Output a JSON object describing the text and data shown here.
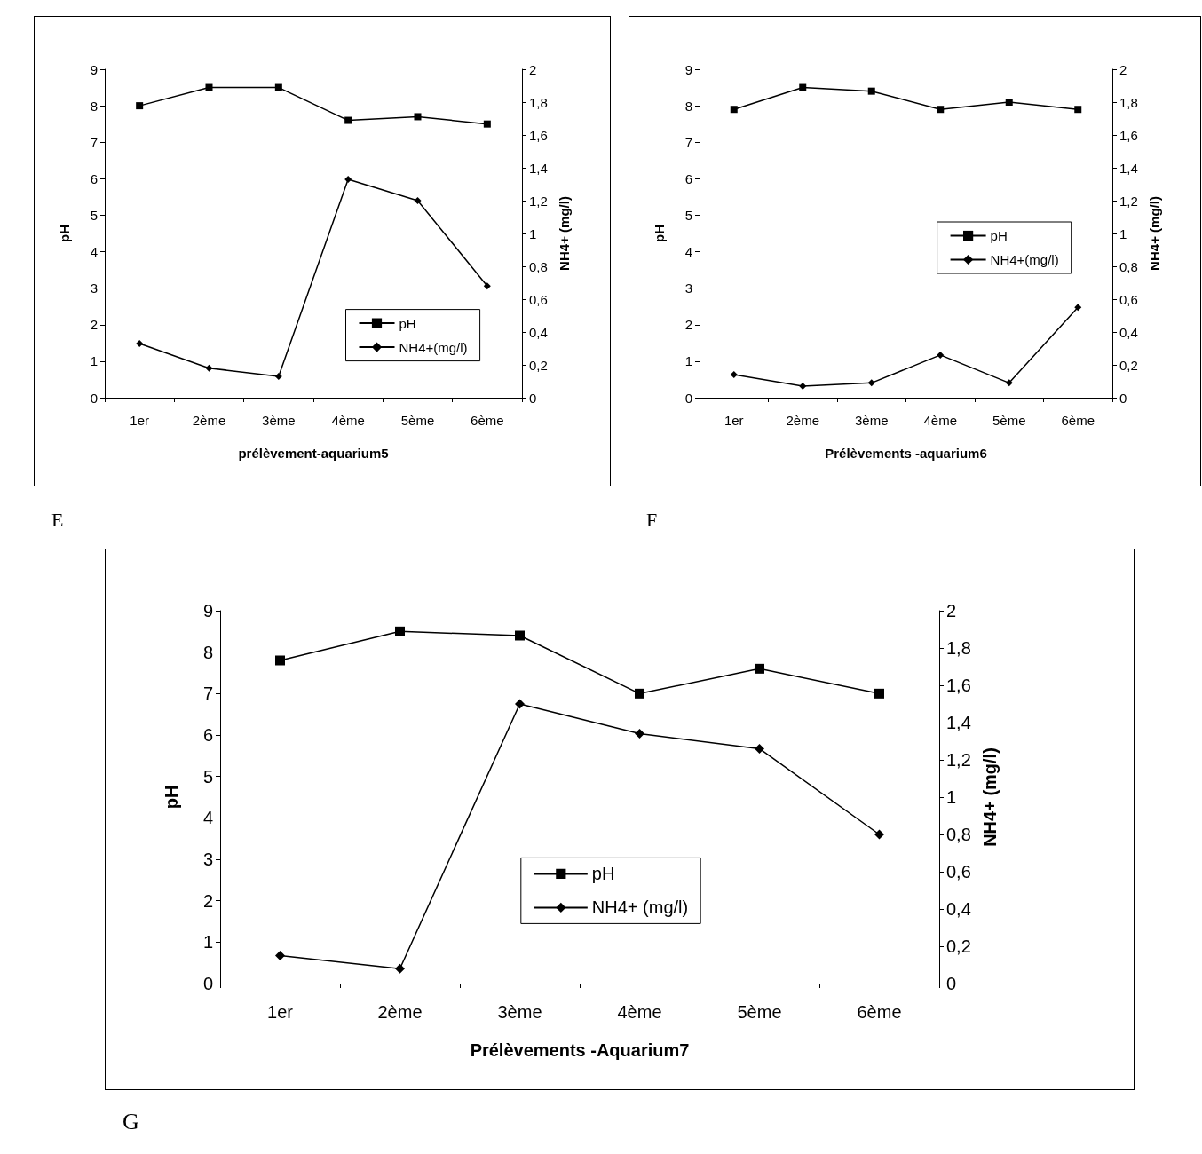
{
  "chart_data": [
    {
      "type": "line",
      "xlabel": "prélèvement-aquarium5",
      "ylabel": "pH",
      "y2label": "NH4+ (mg/l)",
      "categories": [
        "1er",
        "2ème",
        "3ème",
        "4ème",
        "5ème",
        "6ème"
      ],
      "series": [
        {
          "name": "pH",
          "color": "#000000",
          "marker": "square",
          "values": [
            8.0,
            8.5,
            8.5,
            7.6,
            7.7,
            7.5
          ]
        },
        {
          "name": "NH4+(mg/l)",
          "color": "#000000",
          "marker": "diamond",
          "axis": "y2",
          "values": [
            0.33,
            0.18,
            0.13,
            1.33,
            1.2,
            0.68
          ]
        }
      ],
      "ylim": [
        0,
        9
      ],
      "yticks": [
        0,
        1,
        2,
        3,
        4,
        5,
        6,
        7,
        8,
        9
      ],
      "y2lim": [
        0,
        2
      ],
      "y2ticks": [
        0,
        {
          "value": 0.2,
          "label": "0,2"
        },
        {
          "value": 0.4,
          "label": "0,4"
        },
        {
          "value": 0.6,
          "label": "0,6"
        },
        {
          "value": 0.8,
          "label": "0,8"
        },
        1,
        {
          "value": 1.2,
          "label": "1,2"
        },
        {
          "value": 1.4,
          "label": "1,4"
        },
        {
          "value": 1.6,
          "label": "1,6"
        },
        {
          "value": 1.8,
          "label": "1,8"
        },
        2
      ],
      "grid": false,
      "legend": "bottom right",
      "line_style": "solid",
      "annotations": [
        "E"
      ]
    },
    {
      "type": "line",
      "xlabel": "Prélèvements -aquarium6",
      "ylabel": "pH",
      "y2label": "NH4+ (mg/l)",
      "categories": [
        "1er",
        "2ème",
        "3ème",
        "4ème",
        "5ème",
        "6ème"
      ],
      "series": [
        {
          "name": "pH",
          "color": "#000000",
          "marker": "square",
          "values": [
            7.9,
            8.5,
            8.4,
            7.9,
            8.1,
            7.9
          ]
        },
        {
          "name": "NH4+(mg/l)",
          "color": "#000000",
          "marker": "diamond",
          "axis": "y2",
          "values": [
            0.14,
            0.07,
            0.09,
            0.26,
            0.09,
            0.55
          ]
        }
      ],
      "ylim": [
        0,
        9
      ],
      "yticks": [
        0,
        1,
        2,
        3,
        4,
        5,
        6,
        7,
        8,
        9
      ],
      "y2lim": [
        0,
        2
      ],
      "y2ticks": [
        0,
        {
          "value": 0.2,
          "label": "0,2"
        },
        {
          "value": 0.4,
          "label": "0,4"
        },
        {
          "value": 0.6,
          "label": "0,6"
        },
        {
          "value": 0.8,
          "label": "0,8"
        },
        1,
        {
          "value": 1.2,
          "label": "1,2"
        },
        {
          "value": 1.4,
          "label": "1,4"
        },
        {
          "value": 1.6,
          "label": "1,6"
        },
        {
          "value": 1.8,
          "label": "1,8"
        },
        2
      ],
      "grid": false,
      "legend": "right",
      "line_style": "solid",
      "annotations": [
        "F"
      ]
    },
    {
      "type": "line",
      "xlabel": "Prélèvements -Aquarium7",
      "ylabel": "pH",
      "y2label": "NH4+ (mg/l)",
      "categories": [
        "1er",
        "2ème",
        "3ème",
        "4ème",
        "5ème",
        "6ème"
      ],
      "series": [
        {
          "name": "pH",
          "color": "#000000",
          "marker": "square",
          "values": [
            7.8,
            8.5,
            8.4,
            7.0,
            7.6,
            7.0
          ]
        },
        {
          "name": "NH4+ (mg/l)",
          "color": "#000000",
          "marker": "diamond",
          "axis": "y2",
          "values": [
            0.15,
            0.08,
            1.5,
            1.34,
            1.26,
            0.8
          ]
        }
      ],
      "ylim": [
        0,
        9
      ],
      "yticks": [
        0,
        1,
        2,
        3,
        4,
        5,
        6,
        7,
        8,
        9
      ],
      "y2lim": [
        0,
        2
      ],
      "y2ticks": [
        0,
        {
          "value": 0.2,
          "label": "0,2"
        },
        {
          "value": 0.4,
          "label": "0,4"
        },
        {
          "value": 0.6,
          "label": "0,6"
        },
        {
          "value": 0.8,
          "label": "0,8"
        },
        1,
        {
          "value": 1.2,
          "label": "1,2"
        },
        {
          "value": 1.4,
          "label": "1,4"
        },
        {
          "value": 1.6,
          "label": "1,6"
        },
        {
          "value": 1.8,
          "label": "1,8"
        },
        2
      ],
      "grid": false,
      "legend": "bottom",
      "line_style": "solid",
      "annotations": [
        "G"
      ]
    }
  ]
}
